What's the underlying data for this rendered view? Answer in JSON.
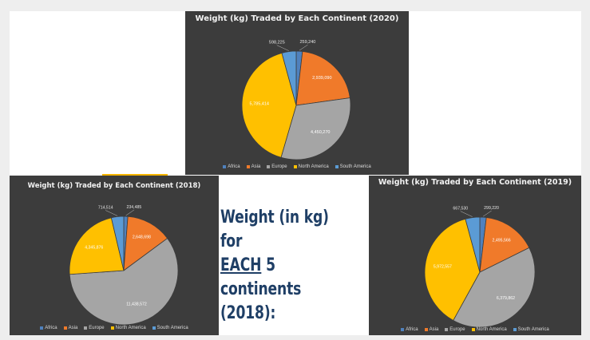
{
  "caption": {
    "line1": "Weight (in kg) for",
    "line2_underlined": "EACH",
    "line2_rest": " 5 continents",
    "line3": "(2018):"
  },
  "colors": {
    "Africa": "#4f81bd",
    "Asia": "#f07a2a",
    "Europe": "#a5a5a5",
    "North America": "#ffc000",
    "South America": "#5b9bd5"
  },
  "chart_data": [
    {
      "type": "pie",
      "title": "Weight (kg) Traded by Each Continent (2020)",
      "categories": [
        "Africa",
        "Asia",
        "Europe",
        "North America",
        "South America"
      ],
      "values": [
        259240,
        2939090,
        4450270,
        5785414,
        598225
      ],
      "value_labels": [
        "259,240",
        "2,939,090",
        "4,450,270",
        "5,785,414",
        "598,225"
      ],
      "legend": "bottom"
    },
    {
      "type": "pie",
      "title": "Weight (kg) Traded by Each Continent (2018)",
      "categories": [
        "Africa",
        "Asia",
        "Europe",
        "North America",
        "South America"
      ],
      "values": [
        234485,
        2648698,
        11438572,
        4345876,
        714514
      ],
      "value_labels": [
        "234,485",
        "2,648,698",
        "11,438,572",
        "4,345,876",
        "714,514"
      ],
      "legend": "bottom"
    },
    {
      "type": "pie",
      "title": "Weight (kg) Traded by Each Continent (2019)",
      "categories": [
        "Africa",
        "Asia",
        "Europe",
        "North America",
        "South America"
      ],
      "values": [
        299220,
        2495566,
        6379862,
        5972557,
        667530
      ],
      "value_labels": [
        "299,220",
        "2,495,566",
        "6,379,862",
        "5,972,557",
        "667,530"
      ],
      "legend": "bottom"
    }
  ]
}
